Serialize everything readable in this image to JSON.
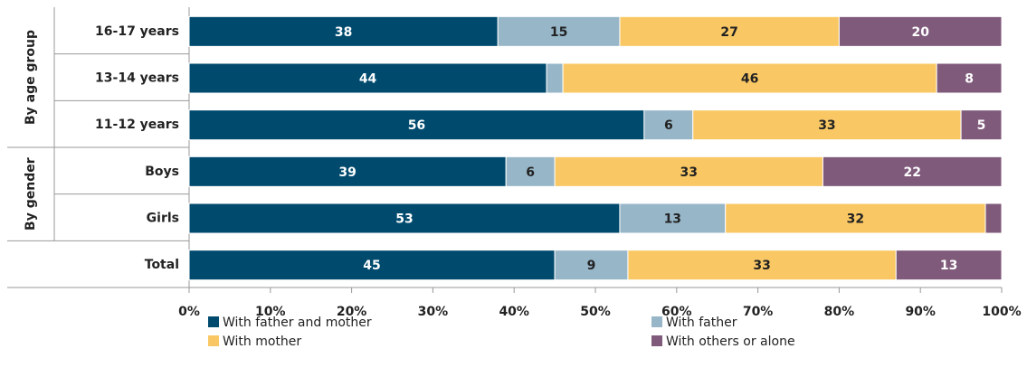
{
  "chart_data": {
    "type": "stacked_barh",
    "categories": [
      "16-17  years",
      "13-14 years",
      "11-12 years",
      "Boys",
      "Girls",
      "Total"
    ],
    "groups": [
      "By age group",
      "By gender"
    ],
    "series": [
      {
        "name": "With father and mother",
        "color": "#004a6e",
        "values": [
          38,
          44,
          56,
          39,
          53,
          45
        ]
      },
      {
        "name": "With father",
        "color": "#97b6c8",
        "values": [
          15,
          2,
          6,
          6,
          13,
          9
        ]
      },
      {
        "name": "With mother",
        "color": "#f9c864",
        "values": [
          27,
          46,
          33,
          33,
          32,
          33
        ]
      },
      {
        "name": "With others or alone",
        "color": "#7f5a7b",
        "values": [
          20,
          8,
          5,
          22,
          2,
          13
        ]
      }
    ],
    "xlim": [
      0,
      100
    ],
    "xticks": [
      {
        "value": 0,
        "label": "0%"
      },
      {
        "value": 10,
        "label": "10%"
      },
      {
        "value": 20,
        "label": "20%"
      },
      {
        "value": 30,
        "label": "30%"
      },
      {
        "value": 40,
        "label": "40%"
      },
      {
        "value": 50,
        "label": "50%"
      },
      {
        "value": 60,
        "label": "60%"
      },
      {
        "value": 70,
        "label": "70%"
      },
      {
        "value": 80,
        "label": "80%"
      },
      {
        "value": 90,
        "label": "90%"
      },
      {
        "value": 100,
        "label": "100%"
      }
    ]
  }
}
